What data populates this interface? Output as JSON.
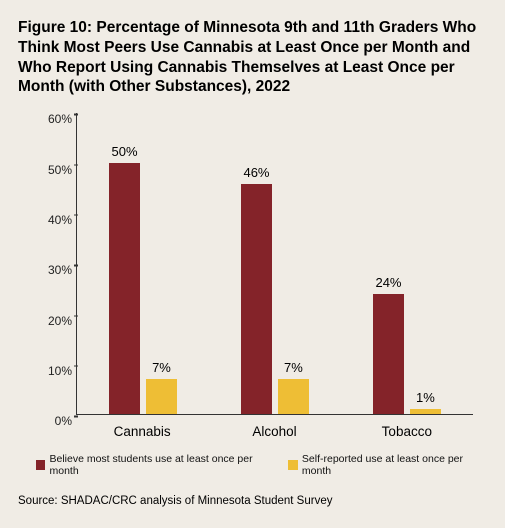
{
  "title": "Figure 10: Percentage of Minnesota 9th and 11th Graders Who Think Most Peers Use Cannabis at Least Once per Month and Who Report Using Cannabis Themselves at Least Once per Month (with Other Substances), 2022",
  "chart": {
    "type": "bar",
    "background_color": "#f0ece5",
    "axis_color": "#333333",
    "label_fontsize": 12,
    "datalabel_fontsize": 13,
    "ylim": [
      0,
      60
    ],
    "ytick_step": 10,
    "ytick_labels": [
      "0%",
      "10%",
      "20%",
      "30%",
      "40%",
      "50%",
      "60%"
    ],
    "categories": [
      "Cannabis",
      "Alcohol",
      "Tobacco"
    ],
    "series": [
      {
        "name": "Believe most students use at least once per month",
        "color": "#842329",
        "values": [
          50,
          46,
          24
        ],
        "value_labels": [
          "50%",
          "46%",
          "24%"
        ]
      },
      {
        "name": "Self-reported use at least once per month",
        "color": "#eebe35",
        "values": [
          7,
          7,
          1
        ],
        "value_labels": [
          "7%",
          "7%",
          "1%"
        ]
      }
    ],
    "bar_width_pct": 24,
    "bar_gap_pct": 4
  },
  "legend": [
    {
      "swatch": "#842329",
      "label": "Believe most students use at least once per month"
    },
    {
      "swatch": "#eebe35",
      "label": "Self-reported use at least once per month"
    }
  ],
  "source": "Source: SHADAC/CRC analysis of Minnesota Student Survey"
}
